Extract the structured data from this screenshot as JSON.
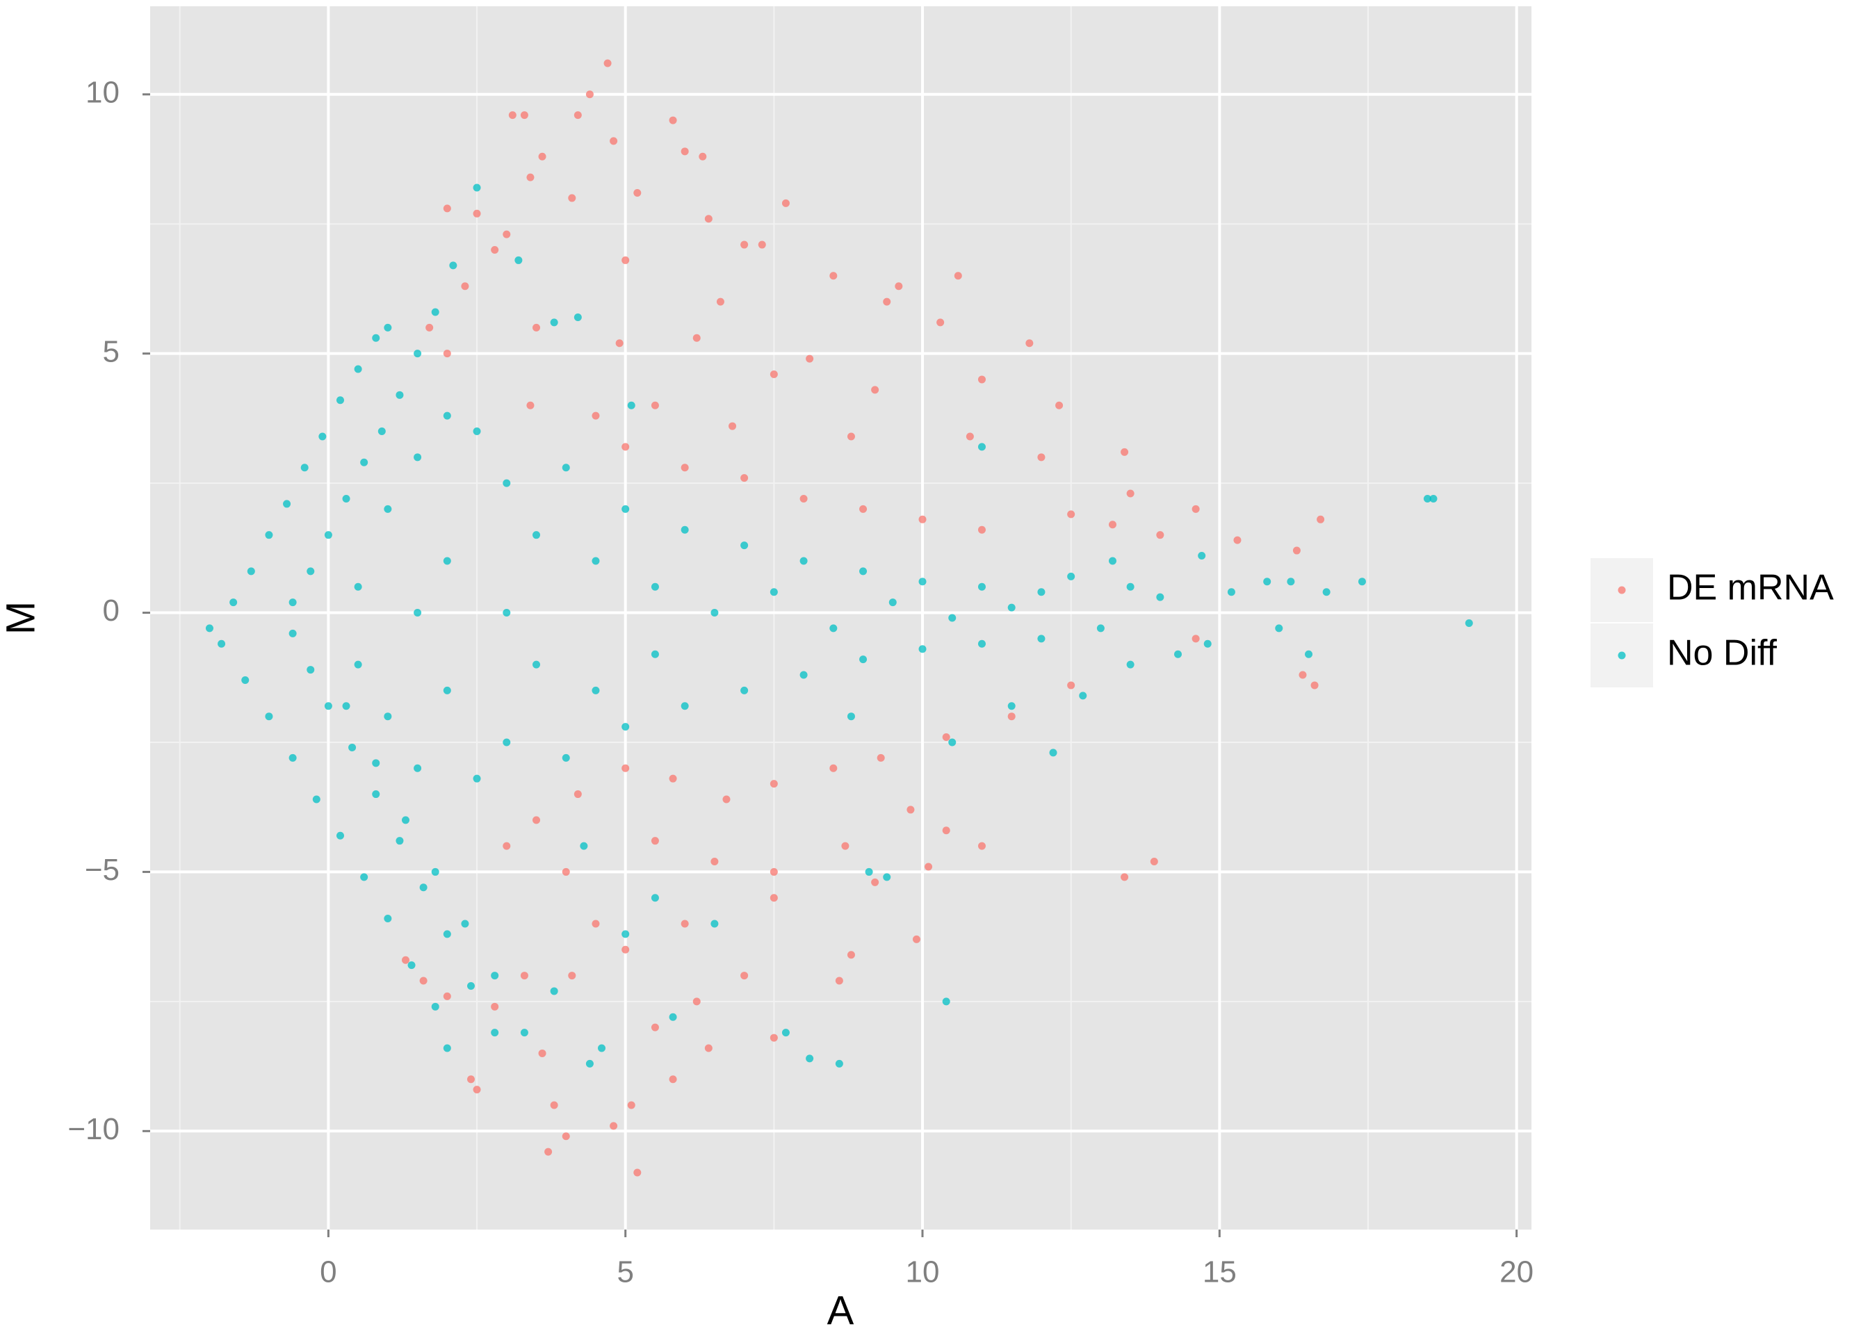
{
  "chart_data": {
    "type": "scatter",
    "x_label": "A",
    "y_label": "M",
    "xlim": [
      -3,
      20.25
    ],
    "ylim": [
      -11.9,
      11.7
    ],
    "xticks": [
      0,
      5,
      10,
      15,
      20
    ],
    "yticks": [
      {
        "value": -10,
        "label": "−10"
      },
      {
        "value": -5,
        "label": "−5"
      },
      0,
      5,
      10
    ],
    "grid": true,
    "legend": "right",
    "series": [
      {
        "name": "DE mRNA",
        "color": "#F8766D",
        "x": [
          4.7,
          4.4,
          3.1,
          3.3,
          4.2,
          5.8,
          6.0,
          6.3,
          4.8,
          3.6,
          3.4,
          4.1,
          5.2,
          7.7,
          2.5,
          2.0,
          3.0,
          6.4,
          7.0,
          7.3,
          2.8,
          5.0,
          8.5,
          9.6,
          10.6,
          9.4,
          6.6,
          2.3,
          1.7,
          2.0,
          3.5,
          4.9,
          6.2,
          8.1,
          10.3,
          11.8,
          7.5,
          9.2,
          11.0,
          12.3,
          3.4,
          4.5,
          5.5,
          6.8,
          8.8,
          10.8,
          12.0,
          13.4,
          5.0,
          6.0,
          7.0,
          8.0,
          9.0,
          10.0,
          11.0,
          12.5,
          13.2,
          14.0,
          14.6,
          15.3,
          16.7,
          16.3,
          13.5,
          16.4,
          16.6,
          14.6,
          12.5,
          11.5,
          10.4,
          9.3,
          8.5,
          7.5,
          6.7,
          5.8,
          5.0,
          4.2,
          3.5,
          3.0,
          4.0,
          5.5,
          6.5,
          7.5,
          8.7,
          9.8,
          10.4,
          11.0,
          9.2,
          10.1,
          13.9,
          13.4,
          7.5,
          6.0,
          5.0,
          4.1,
          3.3,
          2.8,
          3.6,
          3.8,
          3.7,
          4.0,
          4.8,
          5.1,
          5.2,
          5.8,
          6.4,
          7.0,
          7.5,
          8.6,
          9.9,
          8.8,
          2.5,
          2.4,
          1.6,
          1.3,
          2.0,
          4.5,
          6.2,
          5.5
        ],
        "values": [
          10.6,
          10.0,
          9.6,
          9.6,
          9.6,
          9.5,
          8.9,
          8.8,
          9.1,
          8.8,
          8.4,
          8.0,
          8.1,
          7.9,
          7.7,
          7.8,
          7.3,
          7.6,
          7.1,
          7.1,
          7.0,
          6.8,
          6.5,
          6.3,
          6.5,
          6.0,
          6.0,
          6.3,
          5.5,
          5.0,
          5.5,
          5.2,
          5.3,
          4.9,
          5.6,
          5.2,
          4.6,
          4.3,
          4.5,
          4.0,
          4.0,
          3.8,
          4.0,
          3.6,
          3.4,
          3.4,
          3.0,
          3.1,
          3.2,
          2.8,
          2.6,
          2.2,
          2.0,
          1.8,
          1.6,
          1.9,
          1.7,
          1.5,
          2.0,
          1.4,
          1.8,
          1.2,
          2.3,
          -1.2,
          -1.4,
          -0.5,
          -1.4,
          -2.0,
          -2.4,
          -2.8,
          -3.0,
          -3.3,
          -3.6,
          -3.2,
          -3.0,
          -3.5,
          -4.0,
          -4.5,
          -5.0,
          -4.4,
          -4.8,
          -5.0,
          -4.5,
          -3.8,
          -4.2,
          -4.5,
          -5.2,
          -4.9,
          -4.8,
          -5.1,
          -5.5,
          -6.0,
          -6.5,
          -7.0,
          -7.0,
          -7.6,
          -8.5,
          -9.5,
          -10.4,
          -10.1,
          -9.9,
          -9.5,
          -10.8,
          -9.0,
          -8.4,
          -7.0,
          -8.2,
          -7.1,
          -6.3,
          -6.6,
          -9.2,
          -9.0,
          -7.1,
          -6.7,
          -7.4,
          -6.0,
          -7.5,
          -8.0
        ]
      },
      {
        "name": "No Diff",
        "color": "#00BFC4",
        "x": [
          -1.6,
          -1.3,
          -1.0,
          -0.7,
          -0.4,
          -0.1,
          0.2,
          0.5,
          0.8,
          1.0,
          -0.6,
          -0.3,
          0.0,
          0.3,
          0.6,
          0.9,
          1.2,
          1.5,
          1.8,
          2.1,
          2.5,
          -2.0,
          -1.8,
          -1.4,
          -1.0,
          -0.6,
          -0.2,
          0.2,
          0.6,
          1.0,
          1.4,
          1.8,
          2.0,
          -0.6,
          -0.3,
          0.0,
          0.4,
          0.8,
          1.2,
          1.6,
          2.0,
          2.4,
          2.8,
          0.3,
          0.8,
          1.3,
          1.8,
          2.3,
          2.8,
          3.3,
          0.5,
          0.5,
          1,
          1,
          1.5,
          1.5,
          2,
          2,
          2.5,
          2.5,
          3,
          3,
          3,
          3.5,
          3.5,
          4,
          4,
          4.5,
          4.5,
          5,
          5,
          5.5,
          5.5,
          6,
          6,
          6.5,
          7,
          7,
          7.5,
          8,
          8,
          8.5,
          9,
          9,
          9.5,
          10,
          10,
          10.5,
          11,
          11,
          11.5,
          12,
          12,
          12.5,
          13,
          13.5,
          13.5,
          14,
          14.3,
          14.8,
          15.2,
          15.8,
          16.2,
          16.5,
          16.8,
          17.4,
          18.5,
          18.6,
          19.2,
          16,
          1.5,
          2,
          4.3,
          5,
          5.8,
          6.5,
          7.7,
          8.1,
          8.6,
          9.4,
          10.4,
          9.1,
          12.2,
          11.5,
          11.0,
          5.5,
          4.6,
          4.4,
          3.8,
          8.8,
          3.2,
          3.8,
          4.2,
          5.1,
          10.5,
          12.7,
          13.2,
          14.7
        ],
        "values": [
          0.2,
          0.8,
          1.5,
          2.1,
          2.8,
          3.4,
          4.1,
          4.7,
          5.3,
          5.5,
          0.2,
          0.8,
          1.5,
          2.2,
          2.9,
          3.5,
          4.2,
          5.0,
          5.8,
          6.7,
          8.2,
          -0.3,
          -0.6,
          -1.3,
          -2.0,
          -2.8,
          -3.6,
          -4.3,
          -5.1,
          -5.9,
          -6.8,
          -7.6,
          -8.4,
          -0.4,
          -1.1,
          -1.8,
          -2.6,
          -3.5,
          -4.4,
          -5.3,
          -6.2,
          -7.2,
          -8.1,
          -1.8,
          -2.9,
          -4.0,
          -5.0,
          -6.0,
          -7.0,
          -8.1,
          0.5,
          -1,
          2,
          -2,
          3,
          -3,
          1,
          -1.5,
          3.5,
          -3.2,
          2.5,
          -2.5,
          0,
          1.5,
          -1,
          2.8,
          -2.8,
          1,
          -1.5,
          2,
          -2.2,
          0.5,
          -0.8,
          1.6,
          -1.8,
          0,
          1.3,
          -1.5,
          0.4,
          1,
          -1.2,
          -0.3,
          0.8,
          -0.9,
          0.2,
          0.6,
          -0.7,
          -0.1,
          0.5,
          -0.6,
          0.1,
          0.4,
          -0.5,
          0.7,
          -0.3,
          0.5,
          -1.0,
          0.3,
          -0.8,
          -0.6,
          0.4,
          0.6,
          0.6,
          -0.8,
          0.4,
          0.6,
          2.2,
          2.2,
          -0.2,
          -0.3,
          0,
          3.8,
          -4.5,
          -6.2,
          -7.8,
          -6.0,
          -8.1,
          -8.6,
          -8.7,
          -5.1,
          -7.5,
          -5.0,
          -2.7,
          -1.8,
          3.2,
          -5.5,
          -8.4,
          -8.7,
          -7.3,
          -2.0,
          6.8,
          5.6,
          5.7,
          4.0,
          -2.5,
          -1.6,
          1.0,
          1.1
        ]
      }
    ]
  }
}
